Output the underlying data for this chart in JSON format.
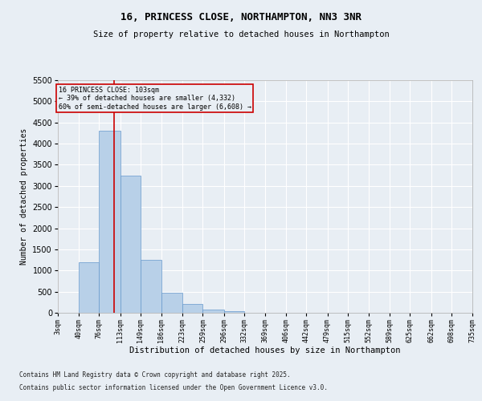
{
  "title": "16, PRINCESS CLOSE, NORTHAMPTON, NN3 3NR",
  "subtitle": "Size of property relative to detached houses in Northampton",
  "xlabel": "Distribution of detached houses by size in Northampton",
  "ylabel": "Number of detached properties",
  "bins": [
    "3sqm",
    "40sqm",
    "76sqm",
    "113sqm",
    "149sqm",
    "186sqm",
    "223sqm",
    "259sqm",
    "296sqm",
    "332sqm",
    "369sqm",
    "406sqm",
    "442sqm",
    "479sqm",
    "515sqm",
    "552sqm",
    "589sqm",
    "625sqm",
    "662sqm",
    "698sqm",
    "735sqm"
  ],
  "bin_edges": [
    3,
    40,
    76,
    113,
    149,
    186,
    223,
    259,
    296,
    332,
    369,
    406,
    442,
    479,
    515,
    552,
    589,
    625,
    662,
    698,
    735
  ],
  "counts": [
    0,
    1200,
    4300,
    3250,
    1250,
    480,
    200,
    80,
    30,
    5,
    0,
    0,
    0,
    0,
    0,
    0,
    0,
    0,
    0,
    0
  ],
  "bar_color": "#b8d0e8",
  "bar_edge_color": "#6699cc",
  "property_size": 103,
  "property_label": "16 PRINCESS CLOSE: 103sqm",
  "annotation_line1": "← 39% of detached houses are smaller (4,332)",
  "annotation_line2": "60% of semi-detached houses are larger (6,608) →",
  "vline_color": "#cc0000",
  "box_edge_color": "#cc0000",
  "background_color": "#e8eef4",
  "grid_color": "#ffffff",
  "ylim": [
    0,
    5500
  ],
  "yticks": [
    0,
    500,
    1000,
    1500,
    2000,
    2500,
    3000,
    3500,
    4000,
    4500,
    5000,
    5500
  ],
  "footnote1": "Contains HM Land Registry data © Crown copyright and database right 2025.",
  "footnote2": "Contains public sector information licensed under the Open Government Licence v3.0."
}
